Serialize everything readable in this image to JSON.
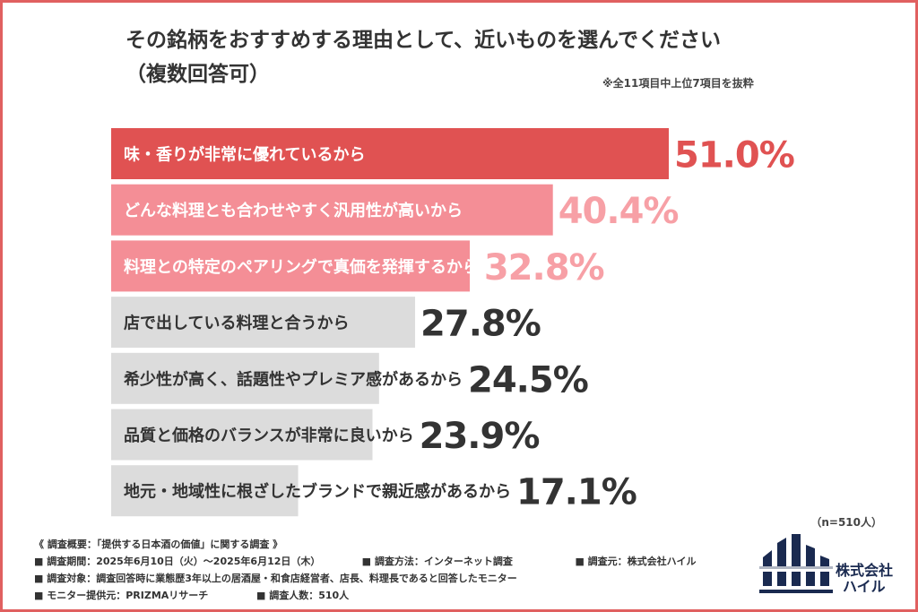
{
  "title_line1": "その銘柄をおすすめする理由として、近いものを選んでください",
  "title_line2": "（複数回答可）",
  "note": "※全11項目中上位7項目を抜粋",
  "sample_size": "（n=510人）",
  "chart_data": {
    "type": "bar",
    "orientation": "horizontal",
    "title": "その銘柄をおすすめする理由として、近いものを選んでください（複数回答可）",
    "categories": [
      "味・香りが非常に優れているから",
      "どんな料理とも合わせやすく汎用性が高いから",
      "料理との特定のペアリングで真価を発揮するから",
      "店で出している料理と合うから",
      "希少性が高く、話題性やプレミア感があるから",
      "品質と価格のバランスが非常に良いから",
      "地元・地域性に根ざしたブランドで親近感があるから"
    ],
    "values": [
      51.0,
      40.4,
      32.8,
      27.8,
      24.5,
      23.9,
      17.1
    ],
    "value_labels": [
      "51.0%",
      "40.4%",
      "32.8%",
      "27.8%",
      "24.5%",
      "23.9%",
      "17.1%"
    ],
    "xlim": [
      0,
      51.0
    ],
    "colors": {
      "top1": "#e05252",
      "top2": "#f48e96",
      "top3": "#f48e96",
      "other": "#dcdcdc",
      "value_top1": "#e05252",
      "value_top23": "#f7a0a6",
      "value_other": "#333333"
    },
    "grid": false,
    "legend": "none"
  },
  "footer": {
    "overview": "《 調査概要：「提供する日本酒の価値」に関する調査 》",
    "period": "■ 調査期間：2025年6月10日（火）〜2025年6月12日（木）",
    "method": "■ 調査方法：インターネット調査",
    "source": "■ 調査元：株式会社ハイル",
    "target": "■ 調査対象：調査回答時に業態歴3年以上の居酒屋・和食店経営者、店長、料理長であると回答したモニター",
    "provider": "■ モニター提供元：PRIZMAリサーチ",
    "count": "■ 調査人数：510人"
  },
  "logo": {
    "name": "haile-logo-icon",
    "line1": "株式会社",
    "line2": "ハイル",
    "color": "#1a2a50"
  }
}
